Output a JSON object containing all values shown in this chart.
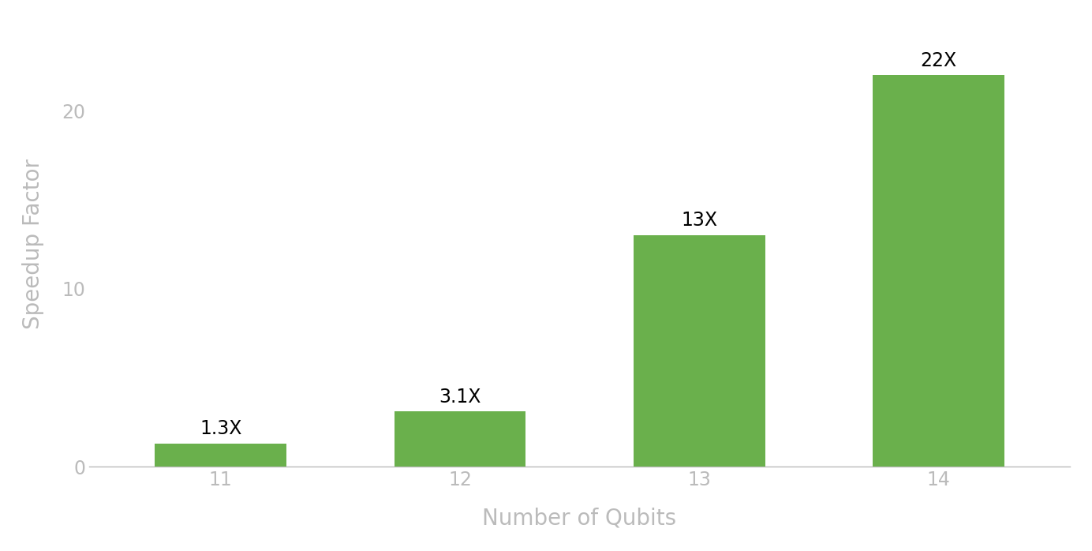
{
  "categories": [
    "11",
    "12",
    "13",
    "14"
  ],
  "values": [
    1.3,
    3.1,
    13,
    22
  ],
  "labels": [
    "1.3X",
    "3.1X",
    "13X",
    "22X"
  ],
  "bar_color": "#6ab04c",
  "xlabel": "Number of Qubits",
  "ylabel": "Speedup Factor",
  "ylim": [
    0,
    25
  ],
  "yticks": [
    0,
    10,
    20
  ],
  "background_color": "#ffffff",
  "label_fontsize": 17,
  "axis_label_fontsize": 20,
  "tick_fontsize": 17,
  "bar_width": 0.55,
  "ylabel_color": "#bbbbbb",
  "xlabel_color": "#bbbbbb",
  "tick_color": "#bbbbbb",
  "spine_color": "#bbbbbb"
}
